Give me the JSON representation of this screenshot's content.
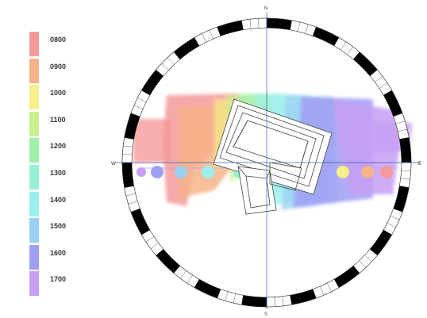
{
  "legend": {
    "items": [
      {
        "label": "0800",
        "color": "#f59a9a"
      },
      {
        "label": "0900",
        "color": "#f7b489"
      },
      {
        "label": "1000",
        "color": "#f5f08a"
      },
      {
        "label": "1100",
        "color": "#c9ef8e"
      },
      {
        "label": "1200",
        "color": "#9ff0a8"
      },
      {
        "label": "1300",
        "color": "#98f1d7"
      },
      {
        "label": "1400",
        "color": "#9bf0ef"
      },
      {
        "label": "1500",
        "color": "#9bd0f2"
      },
      {
        "label": "1600",
        "color": "#9f9ff4"
      },
      {
        "label": "1700",
        "color": "#c79ff4"
      }
    ]
  },
  "compass": {
    "north": "N",
    "south": "S",
    "east": "E",
    "west": "W"
  },
  "colors": {
    "ring_dark": "#000000",
    "ring_outline": "#333333",
    "axis_line": "#3a5fb0",
    "building_stroke": "#444444"
  }
}
